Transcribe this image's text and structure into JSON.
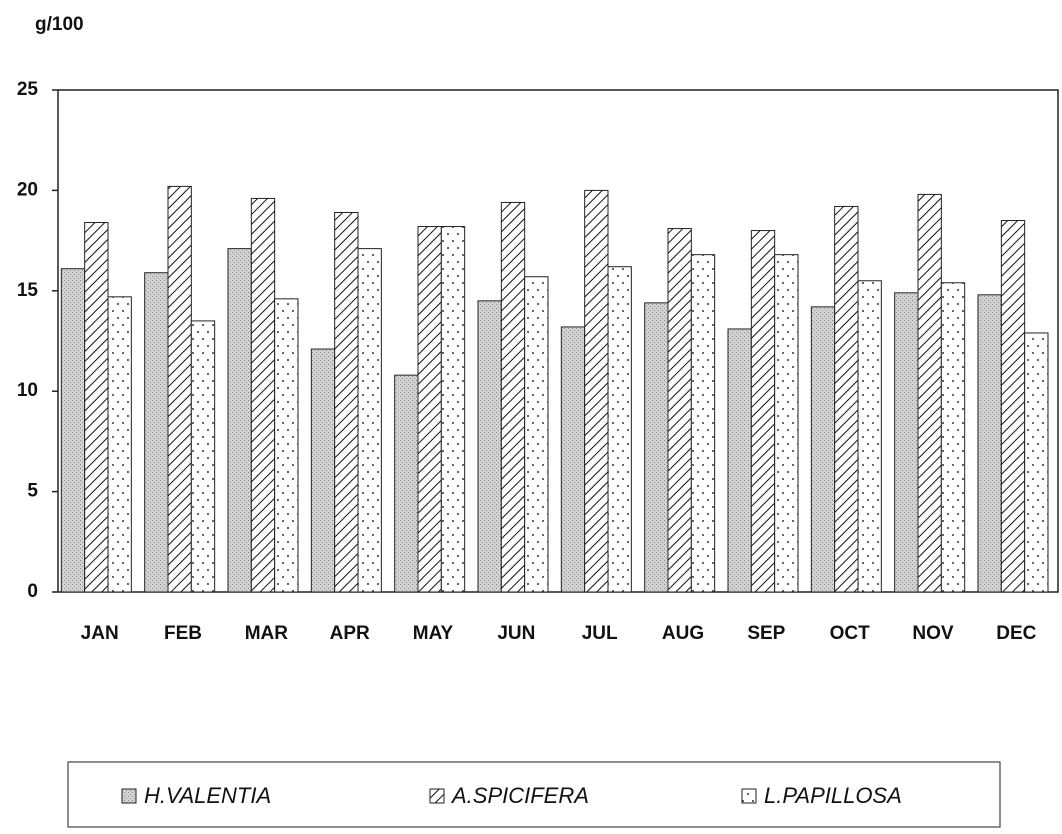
{
  "chart_data": {
    "type": "bar",
    "y_label": "g/100",
    "categories": [
      "JAN",
      "FEB",
      "MAR",
      "APR",
      "MAY",
      "JUN",
      "JUL",
      "AUG",
      "SEP",
      "OCT",
      "NOV",
      "DEC"
    ],
    "series": [
      {
        "name": "H.VALENTIA",
        "color": "#cfcfcf",
        "pattern": "stipple",
        "values": [
          16.1,
          15.9,
          17.1,
          12.1,
          10.8,
          14.5,
          13.2,
          14.4,
          13.1,
          14.2,
          14.9,
          14.8
        ]
      },
      {
        "name": "A.SPICIFERA",
        "color": "#ffffff",
        "pattern": "hatch",
        "values": [
          18.4,
          20.2,
          19.6,
          18.9,
          18.2,
          19.4,
          20.0,
          18.1,
          18.0,
          19.2,
          19.8,
          18.5
        ]
      },
      {
        "name": "L.PAPILLOSA",
        "color": "#ffffff",
        "pattern": "dots",
        "values": [
          14.7,
          13.5,
          14.6,
          17.1,
          18.2,
          15.7,
          16.2,
          16.8,
          16.8,
          15.5,
          15.4,
          12.9
        ]
      }
    ],
    "ylim": [
      0,
      25
    ],
    "yticks": [
      0,
      5,
      10,
      15,
      20,
      25
    ],
    "grid": false
  }
}
